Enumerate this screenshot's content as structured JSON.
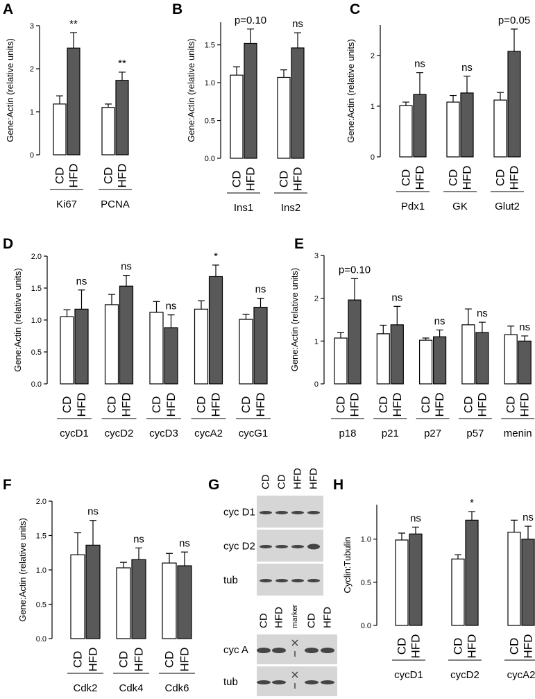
{
  "chart_data": [
    {
      "type": "bar",
      "panel": "A",
      "ylabel": "Gene:Actin (relative units)",
      "categories": [
        "Ki67",
        "PCNA"
      ],
      "series": [
        {
          "name": "CD",
          "color": "#ffffff",
          "values": [
            1.18,
            1.1
          ],
          "errors": [
            0.19,
            0.08
          ]
        },
        {
          "name": "HFD",
          "color": "#595959",
          "values": [
            2.48,
            1.73
          ],
          "errors": [
            0.36,
            0.19
          ]
        }
      ],
      "annotations": [
        "**",
        "**"
      ],
      "ylim": [
        0,
        3
      ],
      "yticks": [
        0,
        1,
        2,
        3
      ]
    },
    {
      "type": "bar",
      "panel": "B",
      "ylabel": "Gene:Actin (relative units)",
      "categories": [
        "Ins1",
        "Ins2"
      ],
      "series": [
        {
          "name": "CD",
          "color": "#ffffff",
          "values": [
            1.1,
            1.07
          ],
          "errors": [
            0.11,
            0.1
          ]
        },
        {
          "name": "HFD",
          "color": "#595959",
          "values": [
            1.52,
            1.46
          ],
          "errors": [
            0.19,
            0.2
          ]
        }
      ],
      "annotations": [
        "p=0.10",
        "ns"
      ],
      "ylim": [
        0,
        1.8
      ],
      "yticks": [
        {
          "value": 0,
          "label": "0.0"
        },
        0.5,
        {
          "value": 1,
          "label": "1.0"
        },
        1.5
      ]
    },
    {
      "type": "bar",
      "panel": "C",
      "ylabel": "Gene:Actin (relative units)",
      "categories": [
        "Pdx1",
        "GK",
        "Glut2"
      ],
      "series": [
        {
          "name": "CD",
          "color": "#ffffff",
          "values": [
            1.01,
            1.08,
            1.12
          ],
          "errors": [
            0.07,
            0.13,
            0.15
          ]
        },
        {
          "name": "HFD",
          "color": "#595959",
          "values": [
            1.23,
            1.26,
            2.08
          ],
          "errors": [
            0.43,
            0.33,
            0.44
          ]
        }
      ],
      "annotations": [
        "ns",
        "ns",
        "p=0.05"
      ],
      "ylim": [
        0,
        2.6
      ],
      "yticks": [
        0,
        1,
        2
      ]
    },
    {
      "type": "bar",
      "panel": "D",
      "ylabel": "Gene:Actin (relative units)",
      "categories": [
        "cycD1",
        "cycD2",
        "cycD3",
        "cycA2",
        "cycG1"
      ],
      "series": [
        {
          "name": "CD",
          "color": "#ffffff",
          "values": [
            1.05,
            1.24,
            1.12,
            1.17,
            1.01
          ],
          "errors": [
            0.11,
            0.16,
            0.17,
            0.13,
            0.08
          ]
        },
        {
          "name": "HFD",
          "color": "#595959",
          "values": [
            1.17,
            1.53,
            0.88,
            1.68,
            1.2
          ],
          "errors": [
            0.3,
            0.17,
            0.2,
            0.18,
            0.14
          ]
        }
      ],
      "annotations": [
        "ns",
        "ns",
        "ns",
        "*",
        "ns"
      ],
      "ylim": [
        0,
        2
      ],
      "yticks": [
        {
          "value": 0,
          "label": "0.0"
        },
        0.5,
        {
          "value": 1,
          "label": "1.0"
        },
        1.5,
        {
          "value": 2,
          "label": "2.0"
        }
      ]
    },
    {
      "type": "bar",
      "panel": "E",
      "ylabel": "Gene:Actin (relative units)",
      "categories": [
        "p18",
        "p21",
        "p27",
        "p57",
        "menin"
      ],
      "series": [
        {
          "name": "CD",
          "color": "#ffffff",
          "values": [
            1.07,
            1.17,
            1.02,
            1.38,
            1.15
          ],
          "errors": [
            0.13,
            0.2,
            0.05,
            0.37,
            0.2
          ]
        },
        {
          "name": "HFD",
          "color": "#595959",
          "values": [
            1.96,
            1.38,
            1.1,
            1.2,
            1.0
          ],
          "errors": [
            0.5,
            0.43,
            0.16,
            0.24,
            0.12
          ]
        }
      ],
      "annotations": [
        "p=0.10",
        "ns",
        "ns",
        "ns",
        "ns"
      ],
      "ylim": [
        0,
        3
      ],
      "yticks": [
        0,
        1,
        2,
        3
      ]
    },
    {
      "type": "bar",
      "panel": "F",
      "ylabel": "Gene:Actin (relative units)",
      "categories": [
        "Cdk2",
        "Cdk4",
        "Cdk6"
      ],
      "series": [
        {
          "name": "CD",
          "color": "#ffffff",
          "values": [
            1.22,
            1.03,
            1.1
          ],
          "errors": [
            0.32,
            0.08,
            0.14
          ]
        },
        {
          "name": "HFD",
          "color": "#595959",
          "values": [
            1.36,
            1.15,
            1.06
          ],
          "errors": [
            0.36,
            0.17,
            0.2
          ]
        }
      ],
      "annotations": [
        "ns",
        "ns",
        "ns"
      ],
      "ylim": [
        0,
        2
      ],
      "yticks": [
        {
          "value": 0,
          "label": "0.0"
        },
        0.5,
        {
          "value": 1,
          "label": "1.0"
        },
        1.5,
        {
          "value": 2,
          "label": "2.0"
        }
      ]
    },
    {
      "type": "bar",
      "panel": "H",
      "ylabel": "Cyclin:Tubulin",
      "categories": [
        "cycD1",
        "cycD2",
        "cycA2"
      ],
      "series": [
        {
          "name": "CD",
          "color": "#ffffff",
          "values": [
            0.99,
            0.77,
            1.08
          ],
          "errors": [
            0.08,
            0.05,
            0.14
          ]
        },
        {
          "name": "HFD",
          "color": "#595959",
          "values": [
            1.06,
            1.22,
            1.0
          ],
          "errors": [
            0.08,
            0.1,
            0.15
          ]
        }
      ],
      "annotations": [
        "ns",
        "*",
        "ns"
      ],
      "ylim": [
        0,
        1.4
      ],
      "yticks": [
        {
          "value": 0,
          "label": "0.0"
        },
        0.5,
        {
          "value": 1,
          "label": "1.0"
        }
      ]
    }
  ],
  "blot": {
    "panel": "G",
    "top": {
      "columns": [
        "CD",
        "CD",
        "HFD",
        "HFD"
      ],
      "rows": [
        "cyc D1",
        "cyc D2",
        "tub"
      ]
    },
    "bottom": {
      "columns": [
        "CD",
        "HFD",
        "marker",
        "CD",
        "HFD"
      ],
      "rows": [
        "cyc A",
        "tub"
      ]
    }
  }
}
